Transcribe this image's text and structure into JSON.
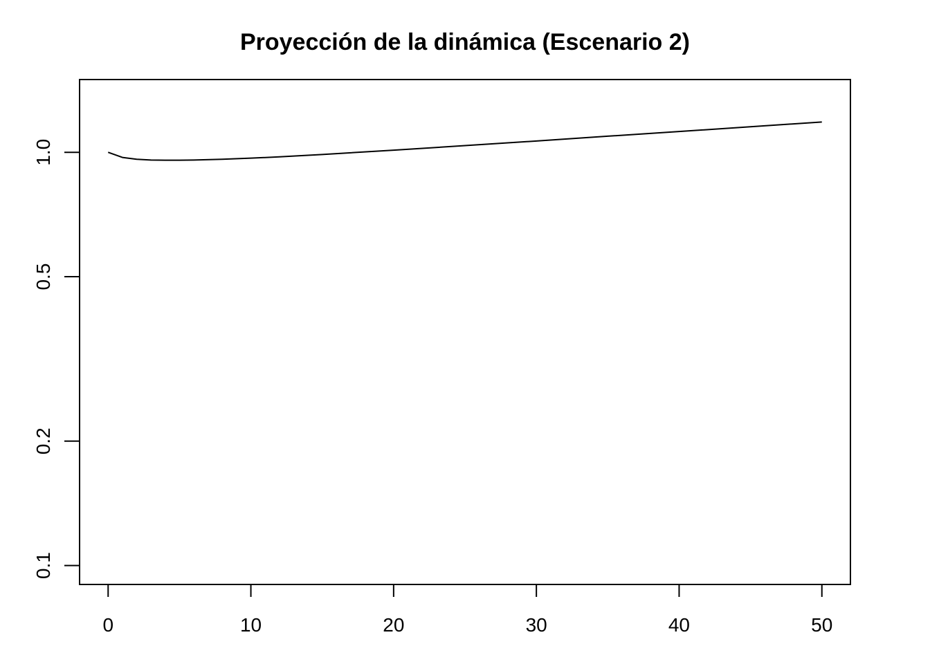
{
  "chart_data": {
    "type": "line",
    "title": "Proyección de la dinámica (Escenario 2)",
    "xlabel": "",
    "ylabel": "",
    "xlim": [
      -2,
      52
    ],
    "ylim": [
      0.09,
      1.5
    ],
    "ylog": true,
    "grid": false,
    "x_ticks": [
      0,
      10,
      20,
      30,
      40,
      50
    ],
    "x_tick_labels": [
      "0",
      "10",
      "20",
      "30",
      "40",
      "50"
    ],
    "y_ticks": [
      0.1,
      0.2,
      0.5,
      1.0
    ],
    "y_tick_labels": [
      "0.1",
      "0.2",
      "0.5",
      "1.0"
    ],
    "series": [
      {
        "color": "#000000",
        "x": [
          0,
          1,
          2,
          3,
          4,
          5,
          6,
          8,
          10,
          12,
          15,
          20,
          25,
          30,
          35,
          40,
          45,
          50
        ],
        "y": [
          1.0,
          0.972,
          0.962,
          0.958,
          0.957,
          0.957,
          0.958,
          0.962,
          0.968,
          0.975,
          0.988,
          1.012,
          1.038,
          1.065,
          1.094,
          1.123,
          1.153,
          1.184
        ]
      }
    ]
  }
}
